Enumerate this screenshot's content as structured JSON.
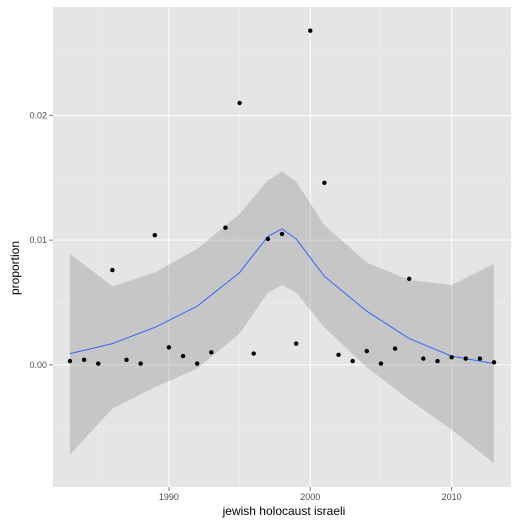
{
  "chart_data": {
    "type": "scatter",
    "xlabel": "jewish holocaust israeli",
    "ylabel": "proportion",
    "xlim": [
      1981.8,
      2014.2
    ],
    "ylim": [
      -0.0098,
      0.0287
    ],
    "x_ticks": [
      1990,
      2000,
      2010
    ],
    "x_tick_labels": [
      "1990",
      "2000",
      "2010"
    ],
    "y_ticks": [
      0.0,
      0.01,
      0.02
    ],
    "y_tick_labels": [
      "0.00",
      "0.01",
      "0.02"
    ],
    "grid": true,
    "colors": {
      "panel_bg": "#e5e5e5",
      "grid_major": "#ffffff",
      "grid_minor": "#f2f2f2",
      "points": "#000000",
      "smooth_line": "#3366ff",
      "confidence_band": "#999999"
    },
    "points": [
      {
        "x": 1983,
        "y": 0.0003
      },
      {
        "x": 1984,
        "y": 0.0004
      },
      {
        "x": 1985,
        "y": 0.0001
      },
      {
        "x": 1986,
        "y": 0.0076
      },
      {
        "x": 1987,
        "y": 0.0004
      },
      {
        "x": 1988,
        "y": 0.0001
      },
      {
        "x": 1989,
        "y": 0.0104
      },
      {
        "x": 1990,
        "y": 0.0014
      },
      {
        "x": 1991,
        "y": 0.0007
      },
      {
        "x": 1992,
        "y": 0.0001
      },
      {
        "x": 1993,
        "y": 0.001
      },
      {
        "x": 1994,
        "y": 0.011
      },
      {
        "x": 1995,
        "y": 0.021
      },
      {
        "x": 1996,
        "y": 0.0009
      },
      {
        "x": 1997,
        "y": 0.0101
      },
      {
        "x": 1998,
        "y": 0.0105
      },
      {
        "x": 1999,
        "y": 0.0017
      },
      {
        "x": 2000,
        "y": 0.0268
      },
      {
        "x": 2001,
        "y": 0.0146
      },
      {
        "x": 2002,
        "y": 0.0008
      },
      {
        "x": 2003,
        "y": 0.0003
      },
      {
        "x": 2004,
        "y": 0.0011
      },
      {
        "x": 2005,
        "y": 0.0001
      },
      {
        "x": 2006,
        "y": 0.0013
      },
      {
        "x": 2007,
        "y": 0.0069
      },
      {
        "x": 2008,
        "y": 0.0005
      },
      {
        "x": 2009,
        "y": 0.0003
      },
      {
        "x": 2010,
        "y": 0.0006
      },
      {
        "x": 2011,
        "y": 0.0005
      },
      {
        "x": 2012,
        "y": 0.0005
      },
      {
        "x": 2013,
        "y": 0.0002
      }
    ],
    "smooth": {
      "x": [
        1983,
        1986,
        1989,
        1992,
        1995,
        1997,
        1998,
        1999,
        2001,
        2004,
        2007,
        2010,
        2013
      ],
      "y": [
        0.0009,
        0.0017,
        0.003,
        0.0047,
        0.0074,
        0.0103,
        0.0109,
        0.0101,
        0.0071,
        0.0043,
        0.0021,
        0.0007,
        0.0001
      ],
      "lower": [
        -0.0072,
        -0.0035,
        -0.0018,
        -0.0003,
        0.0025,
        0.0058,
        0.0064,
        0.0058,
        0.003,
        -0.0002,
        -0.0028,
        -0.0052,
        -0.0079
      ],
      "upper": [
        0.0089,
        0.0063,
        0.0074,
        0.0093,
        0.0121,
        0.0148,
        0.0155,
        0.0147,
        0.0112,
        0.0082,
        0.0068,
        0.0064,
        0.0081
      ]
    }
  }
}
